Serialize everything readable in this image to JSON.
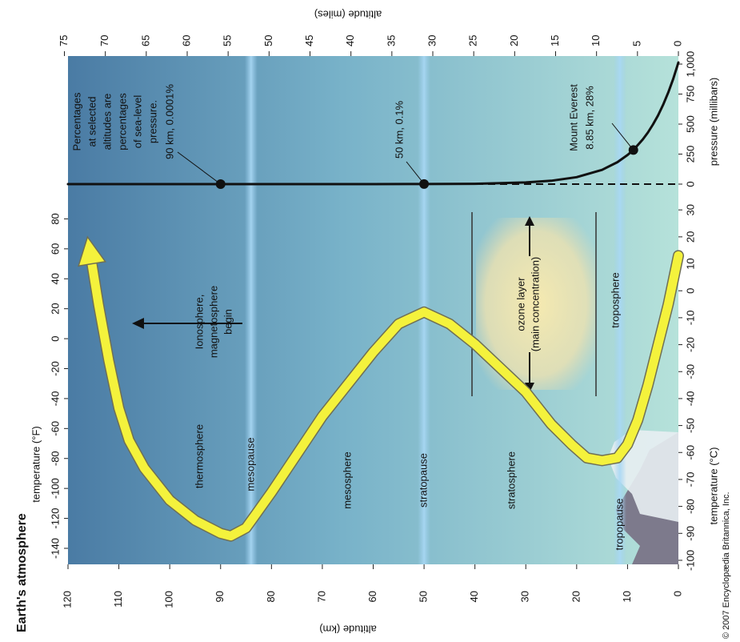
{
  "chart_data": [
    {
      "type": "line",
      "title": "Earth's atmosphere",
      "xlabel": "temperature (°C)",
      "x2label": "temperature (°F)",
      "ylabel": "altitude (km)",
      "y2label": "altitude (miles)",
      "xlim": [
        -101.5,
        36
      ],
      "xticks": [
        -100,
        -90,
        -80,
        -70,
        -60,
        -50,
        -40,
        -30,
        -20,
        -10,
        0,
        10,
        20,
        30
      ],
      "x2lim": [
        -150.7,
        96.8
      ],
      "x2ticks": [
        -140,
        -120,
        -100,
        -80,
        -60,
        -40,
        -20,
        0,
        20,
        40,
        60,
        80
      ],
      "ylim": [
        0,
        120
      ],
      "yticks": [
        0,
        10,
        20,
        30,
        40,
        50,
        60,
        70,
        80,
        90,
        100,
        110,
        120
      ],
      "y2lim": [
        0,
        74.56
      ],
      "y2ticks": [
        0,
        5,
        10,
        15,
        20,
        25,
        30,
        35,
        40,
        45,
        50,
        55,
        60,
        65,
        70,
        75
      ],
      "series": [
        {
          "color": "#f4f23c",
          "x": [
            13,
            -5,
            -20,
            -35,
            -48,
            -57,
            -62,
            -63,
            -62,
            -57,
            -49.5,
            -37.6,
            -19.8,
            -12.3,
            -7.9,
            -12.3,
            -22.8,
            -46.6,
            -74.8,
            -88,
            -91,
            -90,
            -85.2,
            -77.7,
            -65.8,
            -55.5,
            -43.6,
            -25.8,
            -5,
            10
          ],
          "values": [
            0,
            2,
            4,
            6,
            8,
            10,
            12,
            15,
            18,
            21,
            25,
            30,
            40,
            45,
            50,
            55,
            60,
            70,
            80,
            85,
            88,
            90,
            95,
            100,
            105,
            108,
            110,
            112,
            114,
            115.3
          ]
        }
      ],
      "boundaries": [
        {
          "name": "mesopause",
          "altitude": 84
        },
        {
          "name": "stratopause",
          "altitude": 50
        },
        {
          "name": "tropopause",
          "altitude": 11.5
        }
      ],
      "regions": [
        "thermosphere",
        "mesosphere",
        "stratosphere",
        "troposphere"
      ],
      "annotations": {
        "ionosphere": [
          "Ionosphere,",
          "magnetosphere",
          "begin"
        ],
        "ozone": [
          "ozone layer",
          "(main concentration)"
        ]
      },
      "credit": "© 2007 Encyclopædia Britannica, Inc."
    },
    {
      "type": "line",
      "xlabel": "pressure (millibars)",
      "xlim": [
        -80,
        1067
      ],
      "xticks": [
        0,
        250,
        500,
        750,
        {
          "value": 1000,
          "label": "1,000"
        }
      ],
      "ylim": [
        0,
        120
      ],
      "series": [
        {
          "color": "#111111",
          "x": [
            1013,
            878,
            763,
            661,
            573,
            497,
            430,
            373,
            324,
            284,
            243,
            183,
            119,
            58,
            28,
            14,
            3,
            1,
            0.2,
            0.05,
            0.01,
            0.001,
            0
          ],
          "values": [
            0,
            1,
            2,
            3,
            4,
            5,
            6,
            7,
            8,
            8.85,
            10,
            12,
            15,
            20,
            25,
            30,
            40,
            50,
            60,
            70,
            80,
            90,
            120
          ]
        }
      ],
      "points": [
        {
          "labels": [
            "90 km, 0.0001%"
          ],
          "pressure": 0.001,
          "altitude": 90
        },
        {
          "labels": [
            "50 km, 0.1%"
          ],
          "pressure": 1,
          "altitude": 50
        },
        {
          "labels": [
            "Mount Everest",
            "8.85 km, 28%"
          ],
          "pressure": 284,
          "altitude": 8.85
        }
      ],
      "note": [
        "Percentages",
        "at selected",
        "altitudes are",
        "percentages",
        "of sea-level",
        "pressure."
      ]
    }
  ]
}
